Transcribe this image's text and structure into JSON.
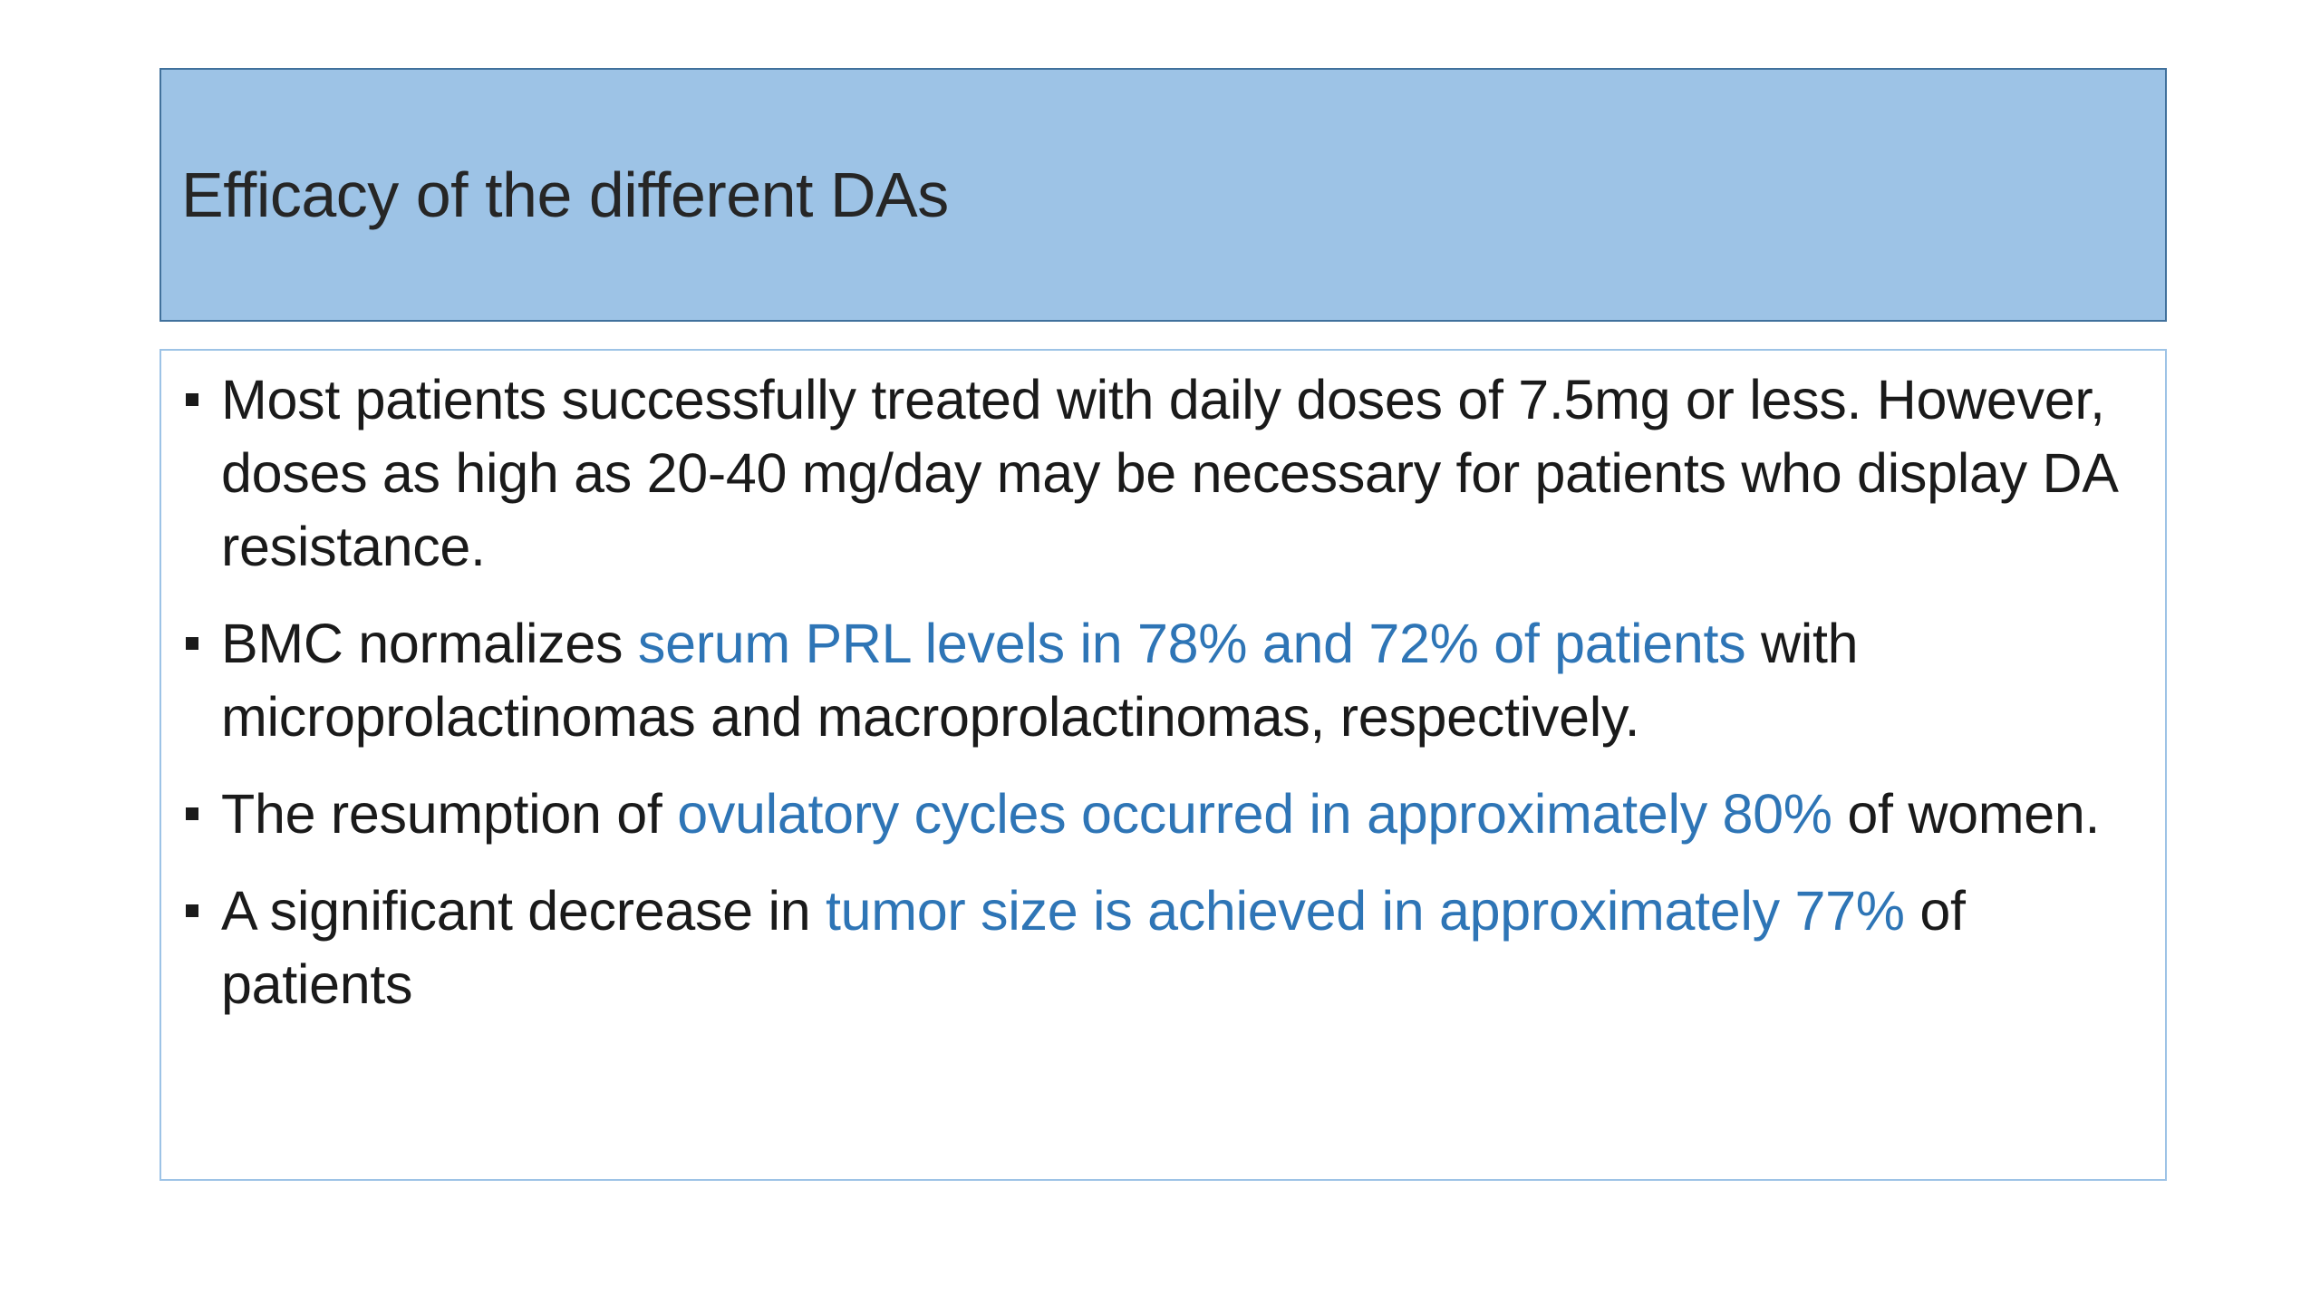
{
  "title": "Efficacy of the different DAs",
  "colors": {
    "title_background": "#9dc3e6",
    "title_border": "#41719c",
    "body_border": "#9dc3e6",
    "text": "#1a1a1a",
    "highlight": "#2e75b6"
  },
  "bullets": [
    {
      "before": "Most patients successfully treated with daily doses of 7.5mg or less. However, doses as high as 20-40 mg/day may be necessary for patients who display DA resistance.",
      "highlight": "",
      "after": ""
    },
    {
      "before": "BMC normalizes ",
      "highlight": "serum PRL levels in 78% and 72% of patients",
      "after": " with microprolactinomas and macroprolactinomas, respectively."
    },
    {
      "before": "The resumption of ",
      "highlight": "ovulatory cycles occurred in approximately 80%",
      "after": " of women."
    },
    {
      "before": "A significant decrease in ",
      "highlight": "tumor size is achieved in approximately 77%",
      "after": " of patients"
    }
  ]
}
